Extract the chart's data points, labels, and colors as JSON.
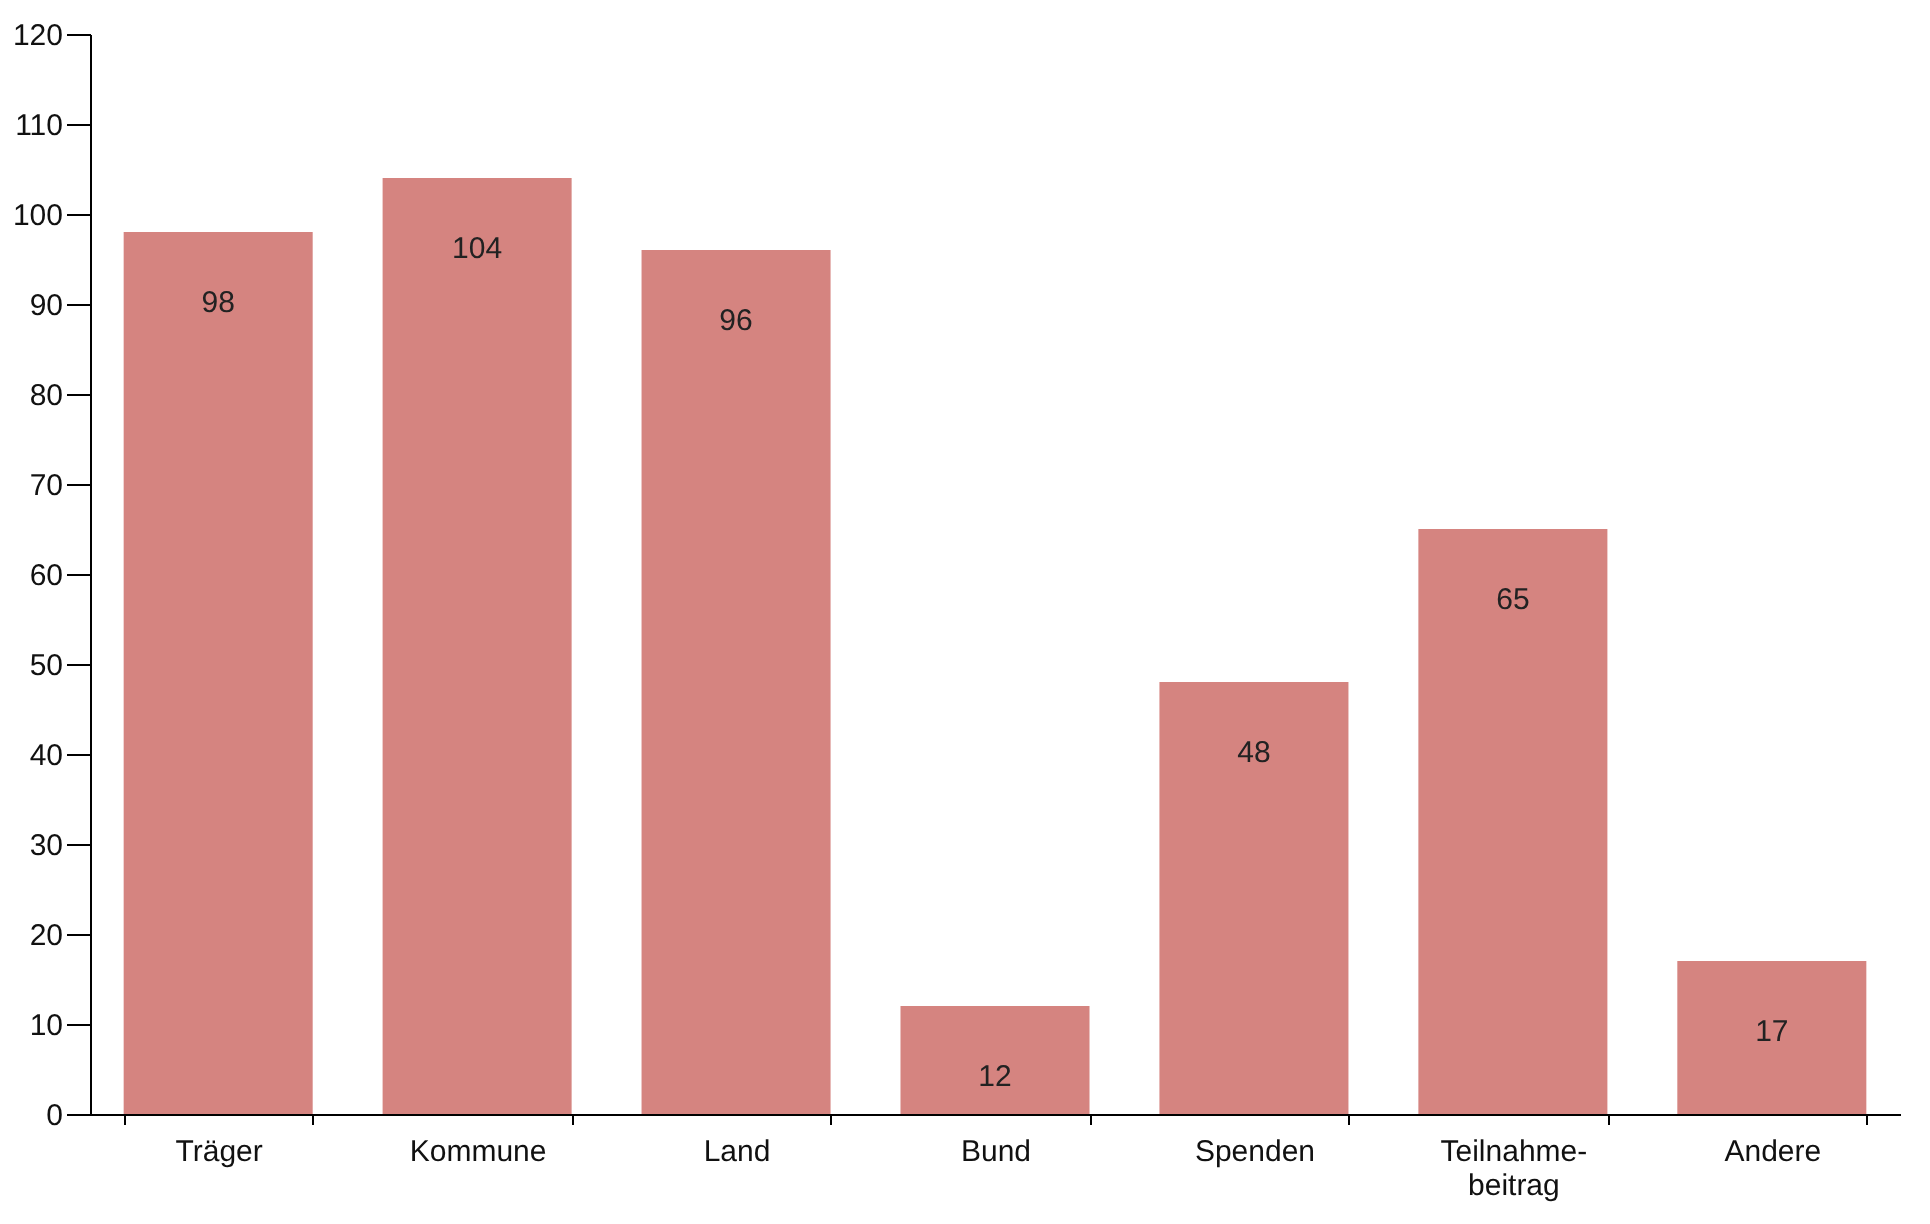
{
  "chart_data": {
    "type": "bar",
    "categories": [
      "Träger",
      "Kommune",
      "Land",
      "Bund",
      "Spenden",
      "Teilnahme-\nbeitrag",
      "Andere"
    ],
    "values": [
      98,
      104,
      96,
      12,
      48,
      65,
      17
    ],
    "color": "#d58480",
    "ylim": [
      0,
      120
    ],
    "yticks": [
      0,
      10,
      20,
      30,
      40,
      50,
      60,
      70,
      80,
      90,
      100,
      110,
      120
    ],
    "grid": false,
    "data_labels": true
  }
}
